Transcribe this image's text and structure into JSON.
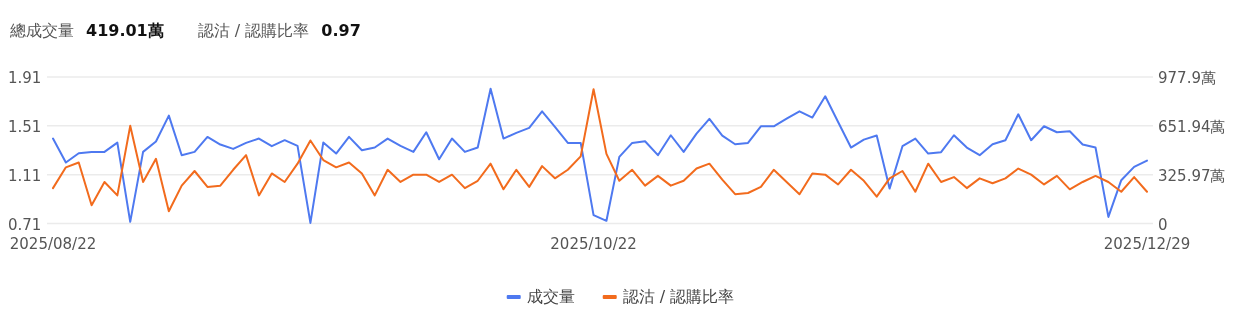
{
  "chart_data": {
    "type": "line",
    "annotations": [
      "總成交量",
      "419.01萬",
      "認沽 / 認購比率",
      "0.97"
    ],
    "categories": [
      "2025/08/22",
      null,
      null,
      null,
      null,
      null,
      null,
      null,
      null,
      null,
      null,
      null,
      null,
      null,
      null,
      null,
      null,
      null,
      null,
      null,
      null,
      null,
      null,
      null,
      null,
      null,
      null,
      null,
      null,
      null,
      null,
      null,
      null,
      null,
      null,
      null,
      null,
      null,
      null,
      null,
      null,
      null,
      "2025/10/22",
      null,
      null,
      null,
      null,
      null,
      null,
      null,
      null,
      null,
      null,
      null,
      null,
      null,
      null,
      null,
      null,
      null,
      null,
      null,
      null,
      null,
      null,
      null,
      null,
      null,
      null,
      null,
      null,
      null,
      null,
      null,
      null,
      null,
      null,
      null,
      null,
      null,
      null,
      null,
      null,
      null,
      null,
      "2025/12/29"
    ],
    "series": [
      {
        "name": "成交量",
        "color": "#4e79f0",
        "axis": "y2",
        "values": [
          567,
          407,
          469,
          478,
          478,
          540,
          11,
          478,
          547,
          720,
          456,
          478,
          578,
          527,
          498,
          538,
          567,
          516,
          556,
          518,
          4,
          540,
          467,
          578,
          489,
          507,
          567,
          518,
          478,
          609,
          429,
          567,
          478,
          507,
          900,
          567,
          605,
          638,
          749,
          645,
          538,
          538,
          56,
          18,
          445,
          538,
          549,
          456,
          589,
          478,
          600,
          698,
          587,
          529,
          538,
          649,
          649,
          700,
          749,
          707,
          849,
          678,
          507,
          560,
          587,
          233,
          516,
          567,
          467,
          476,
          589,
          507,
          456,
          529,
          556,
          729,
          556,
          649,
          609,
          616,
          527,
          507,
          44,
          289,
          378,
          420
        ]
      },
      {
        "name": "認沽 / 認購比率",
        "color": "#f26b1d",
        "values": [
          1.0,
          1.17,
          1.21,
          0.86,
          1.05,
          0.94,
          1.51,
          1.05,
          1.24,
          0.81,
          1.02,
          1.14,
          1.01,
          1.02,
          1.15,
          1.27,
          0.94,
          1.12,
          1.05,
          1.2,
          1.39,
          1.23,
          1.17,
          1.21,
          1.12,
          0.94,
          1.15,
          1.05,
          1.11,
          1.11,
          1.05,
          1.11,
          1.0,
          1.06,
          1.2,
          0.99,
          1.15,
          1.01,
          1.18,
          1.08,
          1.15,
          1.26,
          1.81,
          1.28,
          1.06,
          1.15,
          1.02,
          1.1,
          1.02,
          1.06,
          1.16,
          1.2,
          1.07,
          0.95,
          0.96,
          1.01,
          1.15,
          1.05,
          0.95,
          1.12,
          1.11,
          1.03,
          1.15,
          1.06,
          0.93,
          1.08,
          1.14,
          0.97,
          1.2,
          1.05,
          1.09,
          1.0,
          1.08,
          1.04,
          1.08,
          1.16,
          1.11,
          1.03,
          1.1,
          0.99,
          1.05,
          1.1,
          1.05,
          0.97,
          1.09,
          0.97
        ]
      }
    ],
    "ylim": [
      0.71,
      1.91
    ],
    "yticks": [
      0.71,
      1.11,
      1.51,
      1.91
    ],
    "y2lim": [
      0,
      977.9
    ],
    "y2ticks": [
      0,
      {
        "value": 325.97,
        "label": "325.97萬"
      },
      {
        "value": 651.94,
        "label": "651.94萬"
      },
      {
        "value": 977.9,
        "label": "977.9萬"
      }
    ],
    "grid": "y",
    "legend": "bottom",
    "marker": "none"
  }
}
